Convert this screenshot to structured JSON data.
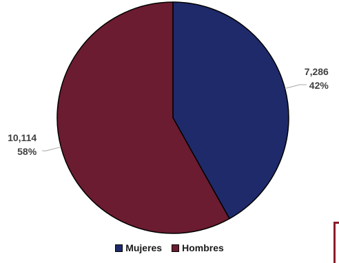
{
  "chart_data": {
    "type": "pie",
    "categories": [
      "Mujeres",
      "Hombres"
    ],
    "values": [
      7286,
      10114
    ],
    "value_labels": [
      "7,286",
      "10,114"
    ],
    "percent_labels": [
      "42%",
      "58%"
    ],
    "colors": [
      "#1f2a6b",
      "#6b1c30"
    ],
    "start_angle_deg": 0,
    "direction": "clockwise",
    "legend_position": "bottom"
  }
}
